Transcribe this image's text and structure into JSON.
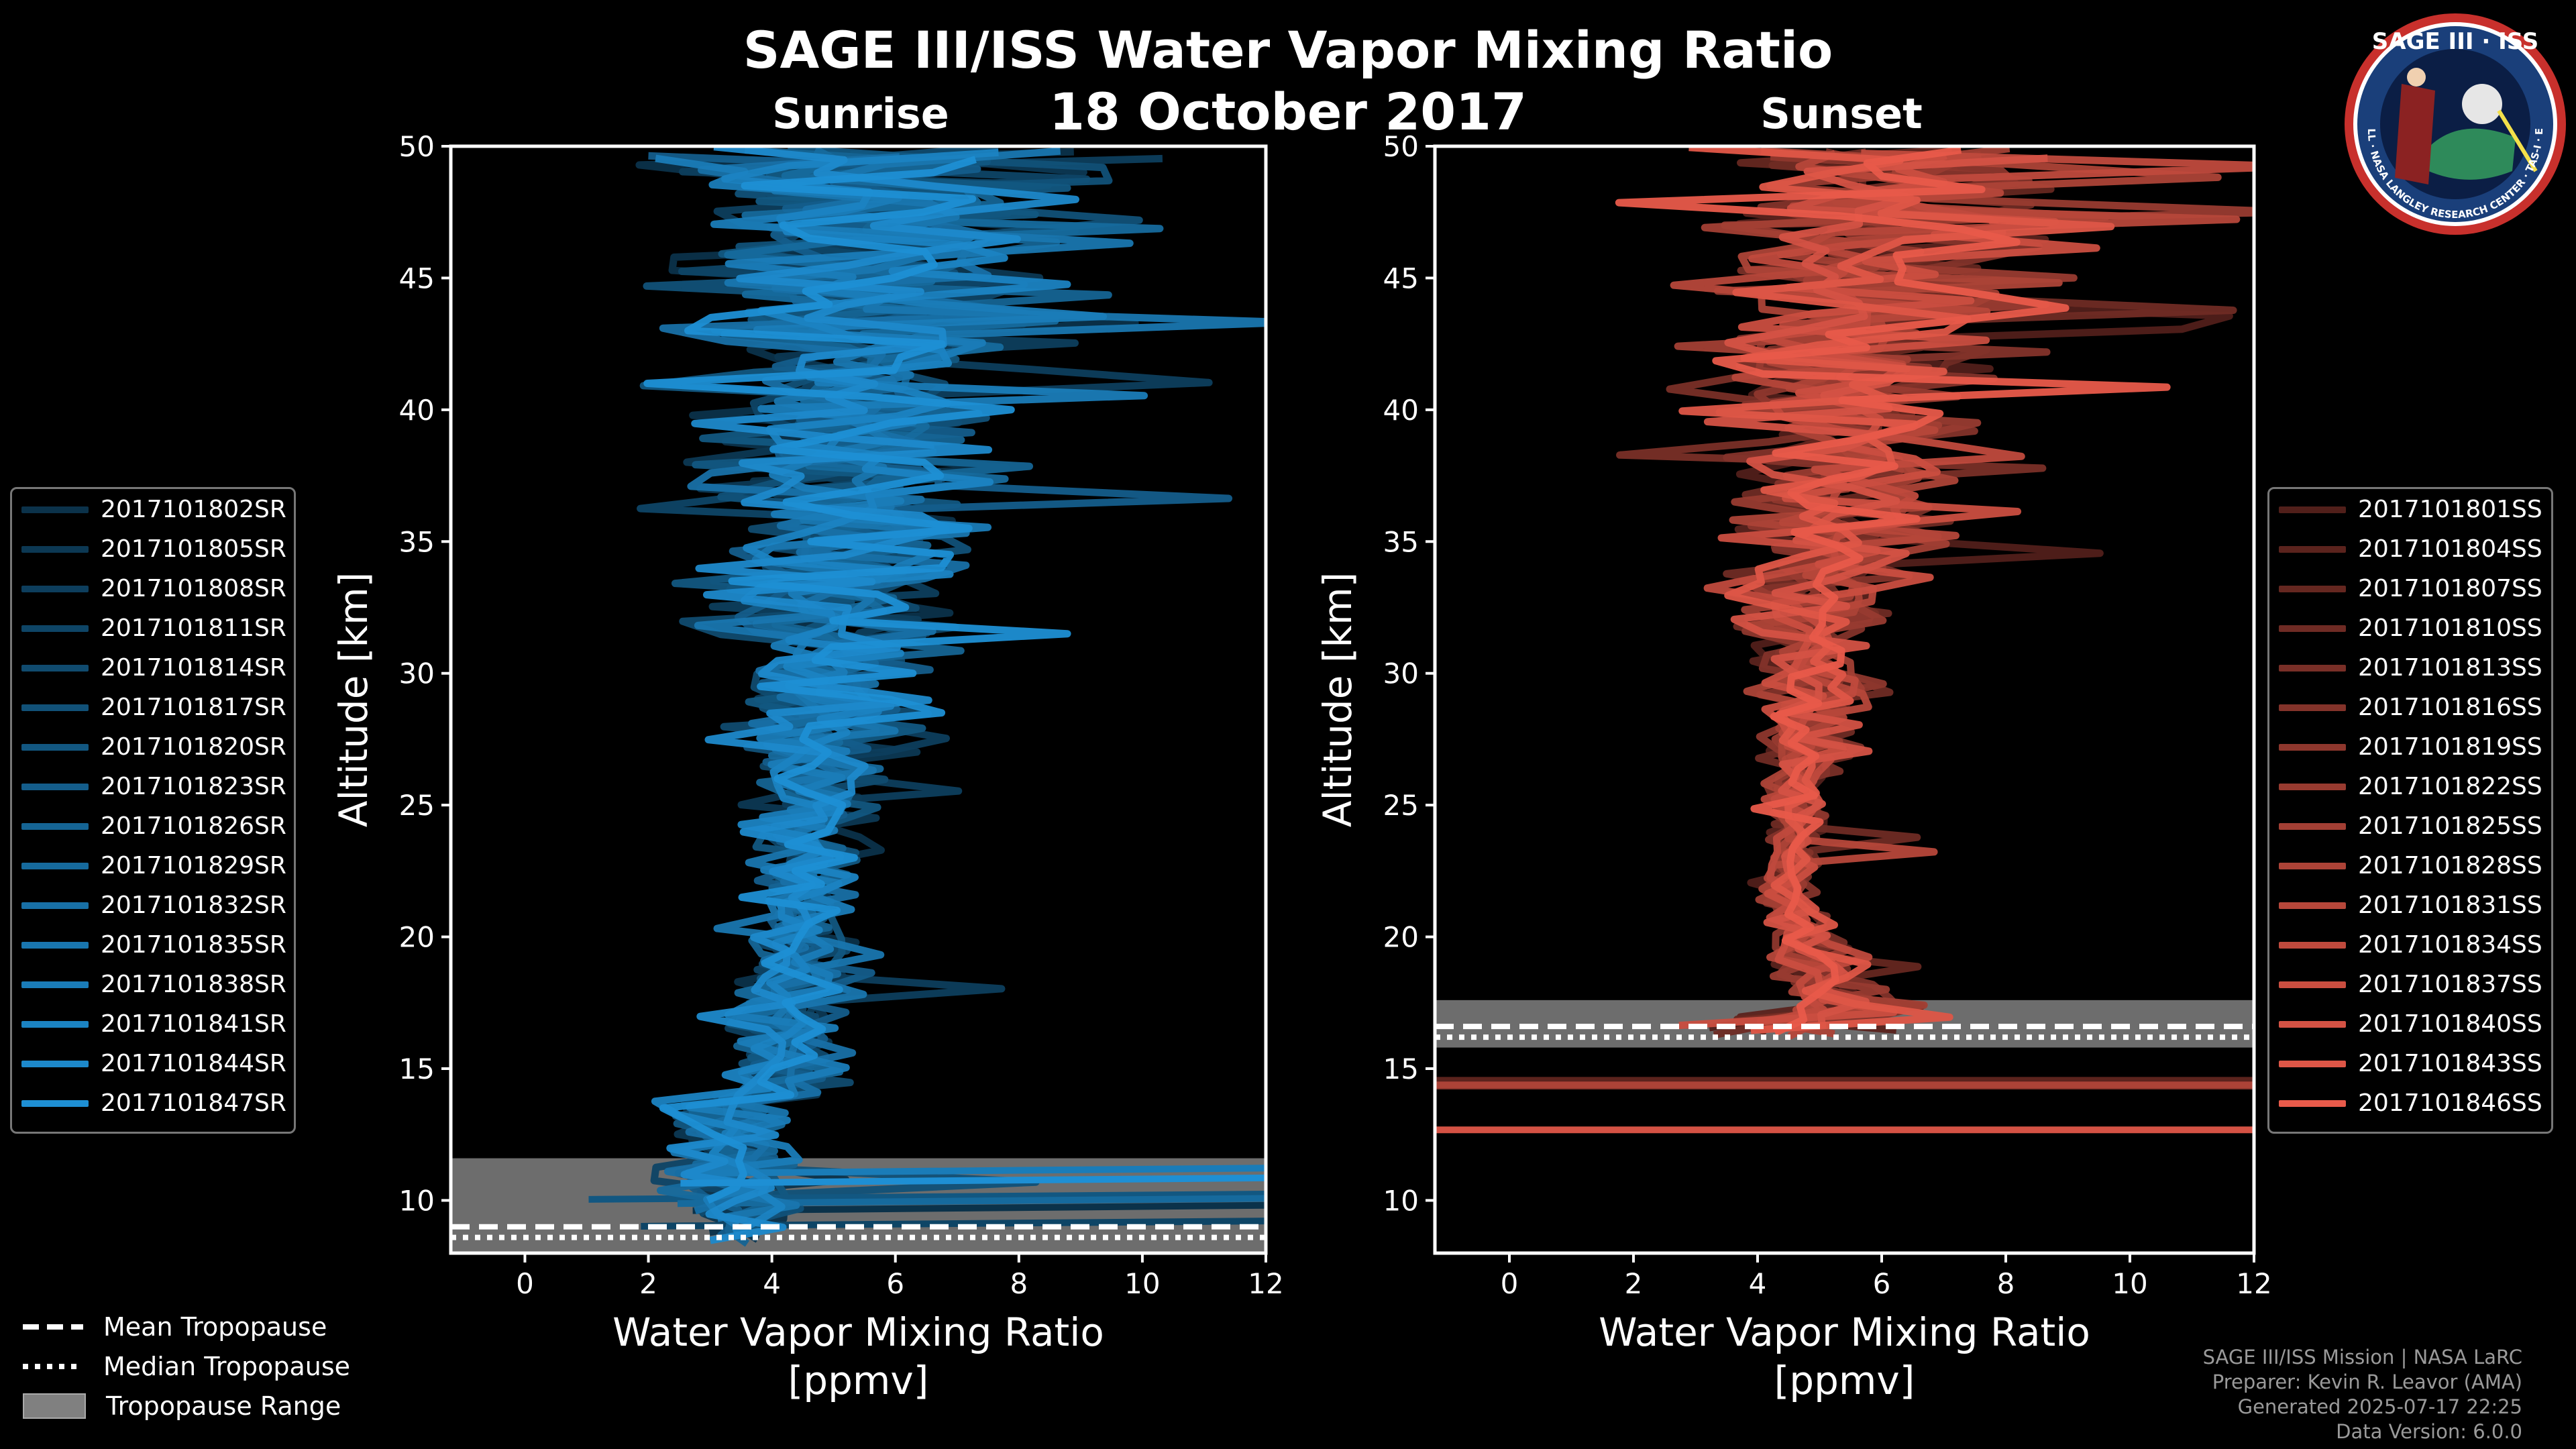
{
  "title": "SAGE III/ISS Water Vapor Mixing Ratio",
  "date": "18 October 2017",
  "colors": {
    "sunrise": "#1e8fd4",
    "sunset": "#e85a4a",
    "tropo": "#808080"
  },
  "chart_data": [
    {
      "type": "line",
      "panel": "Sunrise",
      "xlabel": "Water Vapor Mixing Ratio",
      "xlabel_units": "[ppmv]",
      "ylabel": "Altitude [km]",
      "xlim": [
        -1.2,
        12
      ],
      "ylim": [
        8,
        50
      ],
      "xticks": [
        0,
        2,
        4,
        6,
        8,
        10,
        12
      ],
      "yticks": [
        10,
        15,
        20,
        25,
        30,
        35,
        40,
        45,
        50
      ],
      "tropopause": {
        "mean_km": 9.0,
        "median_km": 8.9,
        "range_km": [
          8.0,
          11.6
        ]
      },
      "series": [
        "2017101802SR",
        "2017101805SR",
        "2017101808SR",
        "2017101811SR",
        "2017101814SR",
        "2017101817SR",
        "2017101820SR",
        "2017101823SR",
        "2017101826SR",
        "2017101829SR",
        "2017101832SR",
        "2017101835SR",
        "2017101838SR",
        "2017101841SR",
        "2017101844SR",
        "2017101847SR"
      ]
    },
    {
      "type": "line",
      "panel": "Sunset",
      "xlabel": "Water Vapor Mixing Ratio",
      "xlabel_units": "[ppmv]",
      "ylabel": "Altitude [km]",
      "xlim": [
        -1.2,
        12
      ],
      "ylim": [
        8,
        50
      ],
      "xticks": [
        0,
        2,
        4,
        6,
        8,
        10,
        12
      ],
      "yticks": [
        10,
        15,
        20,
        25,
        30,
        35,
        40,
        45,
        50
      ],
      "tropopause": {
        "mean_km": 16.6,
        "median_km": 16.5,
        "range_km": [
          15.8,
          17.6
        ]
      },
      "series": [
        "2017101801SS",
        "2017101804SS",
        "2017101807SS",
        "2017101810SS",
        "2017101813SS",
        "2017101816SS",
        "2017101819SS",
        "2017101822SS",
        "2017101825SS",
        "2017101828SS",
        "2017101831SS",
        "2017101834SS",
        "2017101837SS",
        "2017101840SS",
        "2017101843SS",
        "2017101846SS"
      ]
    }
  ],
  "legend_bottom": {
    "mean": "Mean Tropopause",
    "median": "Median Tropopause",
    "range": "Tropopause Range"
  },
  "credits": [
    "SAGE III/ISS Mission | NASA LaRC",
    "Preparer: Kevin R. Leavor (AMA)",
    "Generated 2025-07-17 22:25",
    "Data Version: 6.0.0"
  ],
  "logo": {
    "title": "SAGE III · ISS",
    "ring": "BALL · NASA LANGLEY RESEARCH CENTER · TAS-I · ESA"
  }
}
